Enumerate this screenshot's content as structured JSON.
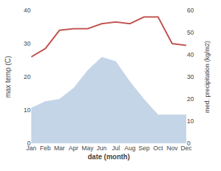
{
  "chart_data": {
    "type": "line",
    "xlabel": "date (month)",
    "ylabel": "max temp (C)",
    "y2label": "med. precipitation (kg/m2)",
    "categories": [
      "Jan",
      "Feb",
      "Mar",
      "Apr",
      "May",
      "Jun",
      "Jul",
      "Aug",
      "Sep",
      "Oct",
      "Nov",
      "Dec"
    ],
    "series": [
      {
        "type": "line",
        "color": "#c0504d",
        "values": [
          26,
          28.5,
          34,
          34.5,
          34.5,
          36,
          36.5,
          36,
          38,
          38,
          30,
          29.5
        ]
      },
      {
        "type": "area",
        "axis": "y2",
        "color": "#c5d5e8",
        "values": [
          16,
          19,
          20,
          25,
          33,
          39,
          37,
          28,
          20,
          13,
          13,
          13
        ]
      }
    ],
    "ylim": [
      0,
      40
    ],
    "yticks": [
      0,
      10,
      20,
      30,
      40
    ],
    "y2lim": [
      0,
      60
    ],
    "y2ticks": [
      0,
      10,
      20,
      30,
      40,
      50,
      60
    ],
    "grid": false
  }
}
